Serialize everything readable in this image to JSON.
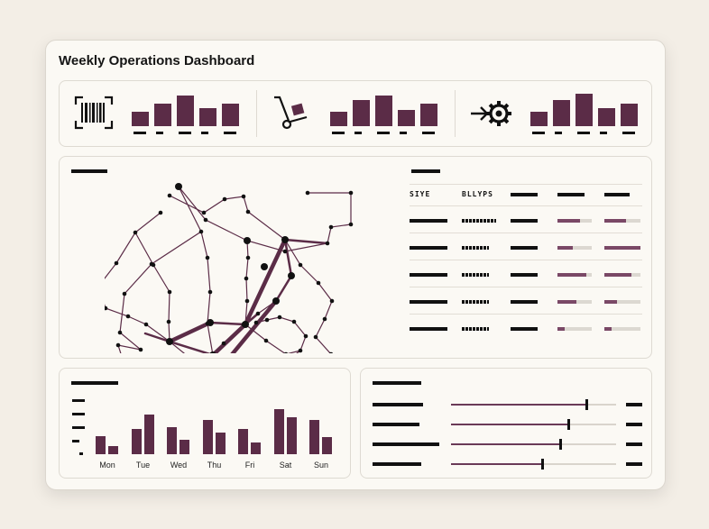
{
  "header": {
    "title": "Weekly Operations Dashboard"
  },
  "kpis": [
    {
      "icon": "barcode-icon",
      "values": [
        0.45,
        0.7,
        0.95,
        0.55,
        0.7
      ]
    },
    {
      "icon": "hand-truck-icon",
      "values": [
        0.45,
        0.8,
        0.95,
        0.5,
        0.7
      ]
    },
    {
      "icon": "gear-process-icon",
      "values": [
        0.45,
        0.8,
        1.0,
        0.55,
        0.7
      ]
    }
  ],
  "table": {
    "columns": [
      "SIYE",
      "BLLYPS",
      "",
      "",
      ""
    ],
    "rows": [
      {
        "p1": 0.65,
        "p2": 0.6
      },
      {
        "p1": 0.45,
        "p2": 1.0
      },
      {
        "p1": 0.85,
        "p2": 0.75
      },
      {
        "p1": 0.55,
        "p2": 0.35
      },
      {
        "p1": 0.2,
        "p2": 0.2
      }
    ]
  },
  "weekly_chart": {
    "categories": [
      "Mon",
      "Tue",
      "Wed",
      "Thu",
      "Fri",
      "Sat",
      "Sun"
    ],
    "series_a": [
      0.4,
      0.55,
      0.6,
      0.75,
      0.55,
      1.0,
      0.75
    ],
    "series_b": [
      0.17,
      0.88,
      0.32,
      0.47,
      0.25,
      0.82,
      0.38
    ]
  },
  "sliders": [
    {
      "value": 0.82
    },
    {
      "value": 0.71
    },
    {
      "value": 0.66
    },
    {
      "value": 0.55
    }
  ],
  "colors": {
    "accent": "#5b2c47",
    "ink": "#111111",
    "panel": "#fbf9f4",
    "page": "#f3eee6"
  }
}
